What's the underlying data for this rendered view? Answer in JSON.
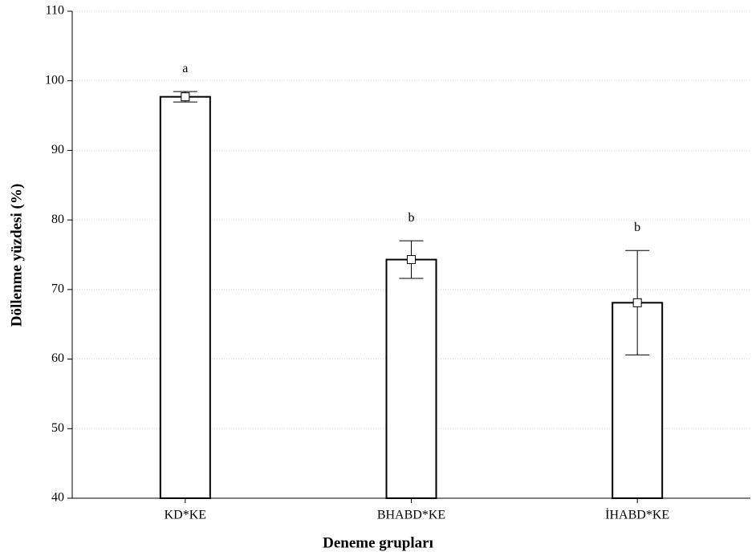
{
  "chart_data": {
    "type": "bar",
    "x_label": "Deneme grupları",
    "y_label": "Döllenme yüzdesi (%)",
    "categories": [
      "KD*KE",
      "BHABD*KE",
      "İHABD*KE"
    ],
    "values": [
      97.7,
      74.3,
      68.1
    ],
    "errors": [
      0.75,
      2.7,
      7.5
    ],
    "annotations": [
      "a",
      "b",
      "b"
    ],
    "color": "#ffffff",
    "ylim": [
      40,
      110
    ],
    "yticks": [
      40,
      50,
      60,
      70,
      80,
      90,
      100,
      110
    ],
    "grid": true
  }
}
